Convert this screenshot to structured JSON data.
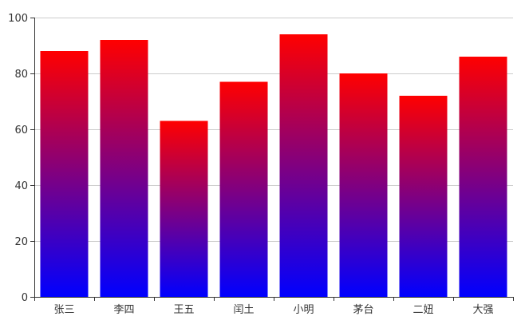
{
  "chart_data": {
    "type": "bar",
    "categories": [
      "张三",
      "李四",
      "王五",
      "闰土",
      "小明",
      "茅台",
      "二妞",
      "大强"
    ],
    "values": [
      88,
      92,
      63,
      77,
      94,
      80,
      72,
      86
    ],
    "ylim": [
      0,
      100
    ],
    "yticks": [
      0,
      20,
      40,
      60,
      80,
      100
    ],
    "ytick_labels": [
      "0",
      "20",
      "40",
      "60",
      "80",
      "100"
    ],
    "grid": true,
    "bar_gradient": {
      "top": "#ff0000",
      "middle": "#800080",
      "bottom": "#0000ff"
    },
    "colors": {
      "grid": "#cccccc",
      "axis": "#333333",
      "label": "#333333"
    }
  }
}
